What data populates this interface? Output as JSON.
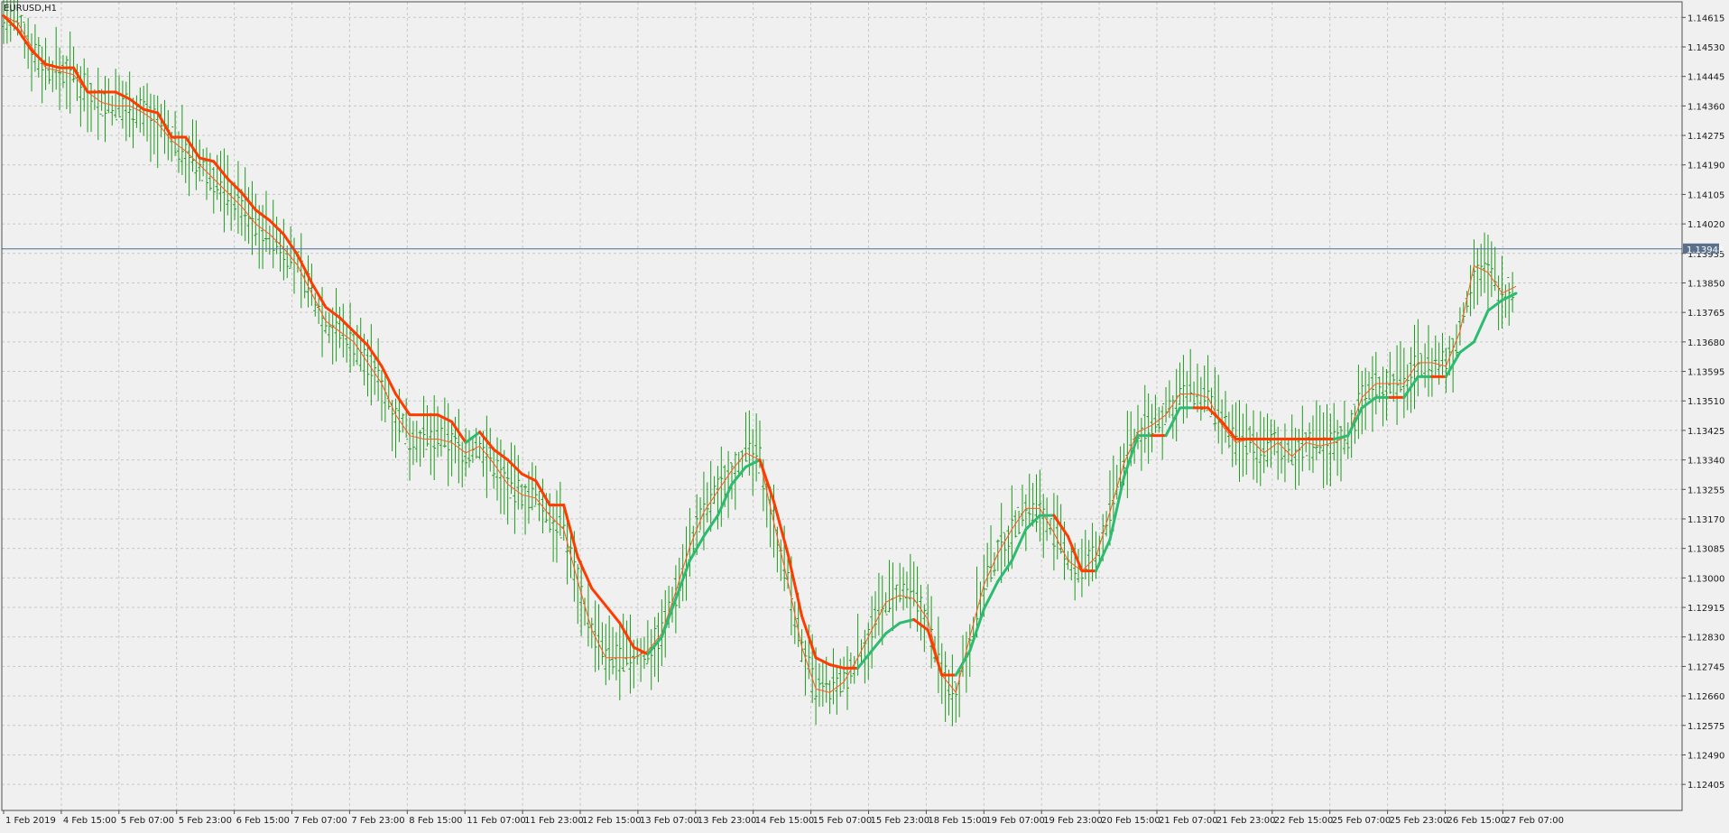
{
  "symbol_label": "EURUSD,H1",
  "colors": {
    "background": "#f0f0f0",
    "grid": "#c8c8c8",
    "frame": "#505050",
    "bars": "#1e9a1e",
    "fast_line_down": "#ff3b00",
    "fast_line_up": "#2dbb70",
    "slow_line": "#ff5a1f",
    "price_line": "#4a6e9a",
    "price_tag_bg": "#5a6f8c"
  },
  "current_price": "1.13948",
  "chart_data": {
    "type": "line",
    "title": "",
    "instrument": "EURUSD",
    "timeframe": "H1",
    "x_tick_labels": [
      "1 Feb 2019",
      "4 Feb 15:00",
      "5 Feb 07:00",
      "5 Feb 23:00",
      "6 Feb 15:00",
      "7 Feb 07:00",
      "7 Feb 23:00",
      "8 Feb 15:00",
      "11 Feb 07:00",
      "11 Feb 23:00",
      "12 Feb 15:00",
      "13 Feb 07:00",
      "13 Feb 23:00",
      "14 Feb 15:00",
      "15 Feb 07:00",
      "15 Feb 23:00",
      "18 Feb 15:00",
      "19 Feb 07:00",
      "19 Feb 23:00",
      "20 Feb 15:00",
      "21 Feb 07:00",
      "21 Feb 23:00",
      "22 Feb 15:00",
      "25 Feb 07:00",
      "25 Feb 23:00",
      "26 Feb 15:00",
      "27 Feb 07:00"
    ],
    "y_tick_labels": [
      "1.14615",
      "1.14530",
      "1.14445",
      "1.14360",
      "1.14275",
      "1.14190",
      "1.14105",
      "1.14020",
      "1.13935",
      "1.13850",
      "1.13765",
      "1.13680",
      "1.13595",
      "1.13510",
      "1.13425",
      "1.13340",
      "1.13255",
      "1.13170",
      "1.13085",
      "1.13000",
      "1.12915",
      "1.12830",
      "1.12745",
      "1.12660",
      "1.12575",
      "1.12490",
      "1.12405"
    ],
    "ylim": [
      1.1233,
      1.1466
    ],
    "grid": true,
    "series": [
      {
        "values": [
          1.1462,
          1.1458,
          1.1452,
          1.1448,
          1.1447,
          1.1447,
          1.144,
          1.144,
          1.144,
          1.1438,
          1.1435,
          1.1434,
          1.1427,
          1.1427,
          1.1421,
          1.142,
          1.1415,
          1.1411,
          1.1406,
          1.1403,
          1.1399,
          1.1393,
          1.1385,
          1.1378,
          1.1375,
          1.1371,
          1.1367,
          1.1361,
          1.1353,
          1.1347,
          1.1347,
          1.1347,
          1.1345,
          1.1339,
          1.1342,
          1.1337,
          1.1334,
          1.133,
          1.1328,
          1.1321,
          1.1321,
          1.1306,
          1.1297,
          1.1292,
          1.1287,
          1.128,
          1.1278,
          1.1283,
          1.1294,
          1.1305,
          1.1312,
          1.1318,
          1.1327,
          1.1332,
          1.1334,
          1.1322,
          1.1307,
          1.1289,
          1.1277,
          1.1275,
          1.1274,
          1.1274,
          1.1279,
          1.1284,
          1.1287,
          1.1288,
          1.1285,
          1.1272,
          1.1272,
          1.1279,
          1.1291,
          1.1299,
          1.1305,
          1.1314,
          1.1318,
          1.1318,
          1.1312,
          1.1302,
          1.1302,
          1.1311,
          1.1329,
          1.1341,
          1.1341,
          1.1341,
          1.1349,
          1.1349,
          1.1349,
          1.1345,
          1.134,
          1.134,
          1.134,
          1.134,
          1.134,
          1.134,
          1.134,
          1.134,
          1.1341,
          1.1349,
          1.1352,
          1.1352,
          1.1352,
          1.1358,
          1.1358,
          1.1358,
          1.1365,
          1.1368,
          1.1377,
          1.138,
          1.1382
        ]
      },
      {
        "values": [
          1.1462,
          1.146,
          1.1453,
          1.1447,
          1.1446,
          1.1445,
          1.144,
          1.1437,
          1.1436,
          1.1436,
          1.1434,
          1.1431,
          1.1426,
          1.1423,
          1.1419,
          1.1415,
          1.1411,
          1.1407,
          1.1402,
          1.1399,
          1.1395,
          1.139,
          1.1382,
          1.1374,
          1.1371,
          1.1368,
          1.1362,
          1.1356,
          1.1347,
          1.1341,
          1.134,
          1.134,
          1.1339,
          1.1336,
          1.1338,
          1.1333,
          1.1327,
          1.1324,
          1.1323,
          1.1318,
          1.1314,
          1.1299,
          1.1285,
          1.1277,
          1.1277,
          1.1277,
          1.1279,
          1.1284,
          1.1296,
          1.1309,
          1.1319,
          1.1325,
          1.1331,
          1.1336,
          1.1334,
          1.1316,
          1.1299,
          1.128,
          1.1268,
          1.1267,
          1.127,
          1.1277,
          1.1285,
          1.1293,
          1.1295,
          1.1294,
          1.1288,
          1.1272,
          1.1267,
          1.1283,
          1.1298,
          1.1307,
          1.1314,
          1.132,
          1.132,
          1.1313,
          1.1305,
          1.1302,
          1.1306,
          1.1319,
          1.1333,
          1.1342,
          1.1344,
          1.1347,
          1.1353,
          1.1353,
          1.1352,
          1.1344,
          1.1339,
          1.134,
          1.1336,
          1.1339,
          1.1335,
          1.1339,
          1.1338,
          1.1339,
          1.1341,
          1.1352,
          1.1356,
          1.1356,
          1.1356,
          1.1362,
          1.1362,
          1.1361,
          1.1371,
          1.139,
          1.1388,
          1.1382,
          1.1384
        ]
      }
    ],
    "horizontal_line": 1.13948
  }
}
